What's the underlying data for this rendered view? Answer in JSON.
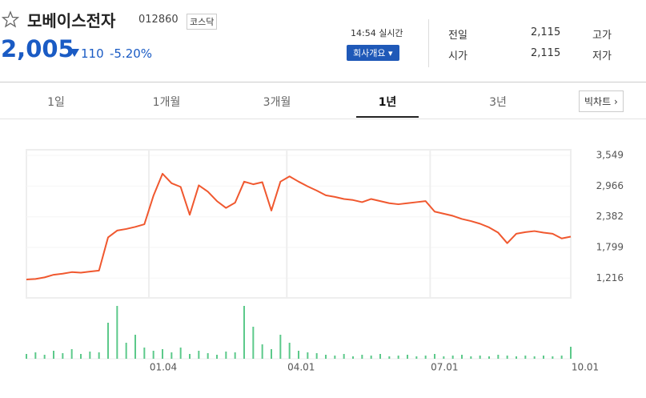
{
  "header": {
    "name": "모베이스전자",
    "code": "012860",
    "market": "코스닥",
    "price": "2,005",
    "change": "110",
    "change_pct": "-5.20%",
    "time": "14:54 실시간",
    "company_button": "회사개요",
    "summary": [
      {
        "label": "전일",
        "value": "2,115"
      },
      {
        "label": "고가"
      },
      {
        "label": "시가",
        "value": "2,115"
      },
      {
        "label": "저가"
      }
    ]
  },
  "tabs": {
    "items": [
      "1일",
      "1개월",
      "3개월",
      "1년",
      "3년"
    ],
    "selected": 3,
    "big_chart": "빅차트"
  },
  "chart_data": {
    "type": "line",
    "color": "#f0582f",
    "volume_color": "#5cc98a",
    "values": [
      1190,
      1200,
      1230,
      1280,
      1300,
      1330,
      1320,
      1340,
      1360,
      1990,
      2120,
      2150,
      2190,
      2240,
      2780,
      3200,
      3020,
      2950,
      2420,
      2980,
      2860,
      2680,
      2550,
      2650,
      3050,
      3000,
      3040,
      2500,
      3050,
      3150,
      3050,
      2960,
      2880,
      2790,
      2760,
      2720,
      2700,
      2660,
      2720,
      2680,
      2640,
      2620,
      2640,
      2660,
      2680,
      2480,
      2440,
      2400,
      2340,
      2300,
      2250,
      2180,
      2080,
      1880,
      2060,
      2090,
      2110,
      2080,
      2060,
      1970,
      2005
    ],
    "volume": [
      6,
      8,
      5,
      10,
      7,
      12,
      6,
      9,
      8,
      45,
      66,
      20,
      30,
      14,
      10,
      12,
      8,
      14,
      6,
      10,
      7,
      5,
      9,
      8,
      66,
      40,
      18,
      12,
      30,
      20,
      10,
      8,
      7,
      5,
      4,
      6,
      3,
      5,
      4,
      6,
      3,
      4,
      5,
      3,
      4,
      6,
      3,
      4,
      5,
      3,
      4,
      3,
      5,
      4,
      3,
      4,
      3,
      4,
      3,
      4,
      15
    ],
    "xlim": [
      0,
      60
    ],
    "xticks": [
      {
        "value": 13.5,
        "label": "01.04"
      },
      {
        "value": 28.7,
        "label": "04.01"
      },
      {
        "value": 44.5,
        "label": "07.01"
      },
      {
        "value": 60,
        "label": "10.01"
      }
    ],
    "ylim": [
      840,
      3656
    ],
    "yticks": [
      {
        "value": 3549,
        "label": "3,549"
      },
      {
        "value": 2966,
        "label": "2,966"
      },
      {
        "value": 2382,
        "label": "2,382"
      },
      {
        "value": 1799,
        "label": "1,799"
      },
      {
        "value": 1216,
        "label": "1,216"
      }
    ],
    "grid": true
  }
}
